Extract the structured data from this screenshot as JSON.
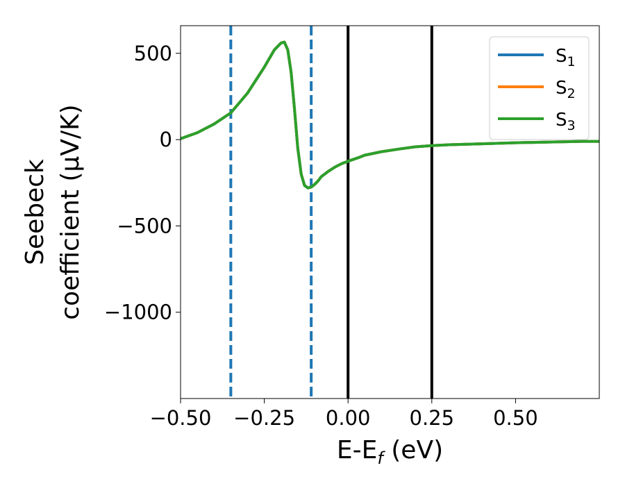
{
  "chart_data": {
    "type": "line",
    "xlabel_main": "E-E",
    "xlabel_sub": "f",
    "xlabel_unit": " (eV)",
    "ylabel_line1": "Seebeck",
    "ylabel_line2": "coefficient  (μV/K)",
    "xlim": [
      -0.5,
      0.75
    ],
    "ylim": [
      -1500,
      660
    ],
    "xticks": [
      -0.5,
      -0.25,
      0.0,
      0.25,
      0.5
    ],
    "xtick_labels": [
      "−0.50",
      "−0.25",
      "0.00",
      "0.25",
      "0.50"
    ],
    "yticks": [
      500,
      0,
      -500,
      -1000
    ],
    "ytick_labels": [
      "500",
      "0",
      "−500",
      "−1000"
    ],
    "grid": false,
    "legend_position": "top-right",
    "series": [
      {
        "name": "S",
        "subscript": "1",
        "color": "#1f77b4",
        "x": [
          -0.5,
          -0.45,
          -0.4,
          -0.35,
          -0.3,
          -0.25,
          -0.22,
          -0.2,
          -0.19,
          -0.18,
          -0.17,
          -0.16,
          -0.15,
          -0.14,
          -0.13,
          -0.12,
          -0.11,
          -0.1,
          -0.09,
          -0.08,
          -0.06,
          -0.04,
          -0.02,
          0.0,
          0.03,
          0.05,
          0.1,
          0.15,
          0.2,
          0.25,
          0.3,
          0.4,
          0.5,
          0.6,
          0.7,
          0.75
        ],
        "y": [
          5,
          40,
          90,
          155,
          270,
          420,
          520,
          560,
          565,
          520,
          390,
          180,
          -50,
          -200,
          -265,
          -280,
          -275,
          -260,
          -240,
          -215,
          -185,
          -160,
          -140,
          -125,
          -105,
          -90,
          -70,
          -55,
          -42,
          -35,
          -30,
          -24,
          -18,
          -14,
          -10,
          -10
        ]
      },
      {
        "name": "S",
        "subscript": "2",
        "color": "#ff7f0e",
        "x": [
          -0.5,
          -0.45,
          -0.4,
          -0.35,
          -0.3,
          -0.25,
          -0.22,
          -0.2,
          -0.19,
          -0.18,
          -0.17,
          -0.16,
          -0.15,
          -0.14,
          -0.13,
          -0.12,
          -0.11,
          -0.1,
          -0.09,
          -0.08,
          -0.06,
          -0.04,
          -0.02,
          0.0,
          0.03,
          0.05,
          0.1,
          0.15,
          0.2,
          0.25,
          0.3,
          0.4,
          0.5,
          0.6,
          0.7,
          0.75
        ],
        "y": [
          5,
          40,
          90,
          155,
          270,
          420,
          520,
          560,
          565,
          520,
          390,
          180,
          -50,
          -200,
          -265,
          -280,
          -275,
          -260,
          -240,
          -215,
          -185,
          -160,
          -140,
          -125,
          -105,
          -90,
          -70,
          -55,
          -42,
          -35,
          -30,
          -24,
          -18,
          -14,
          -10,
          -10
        ]
      },
      {
        "name": "S",
        "subscript": "3",
        "color": "#2ca02c",
        "x": [
          -0.5,
          -0.45,
          -0.4,
          -0.35,
          -0.3,
          -0.25,
          -0.22,
          -0.2,
          -0.19,
          -0.18,
          -0.17,
          -0.16,
          -0.15,
          -0.14,
          -0.13,
          -0.12,
          -0.11,
          -0.1,
          -0.09,
          -0.08,
          -0.06,
          -0.04,
          -0.02,
          0.0,
          0.03,
          0.05,
          0.1,
          0.15,
          0.2,
          0.25,
          0.3,
          0.4,
          0.5,
          0.6,
          0.7,
          0.75
        ],
        "y": [
          5,
          40,
          90,
          155,
          270,
          420,
          520,
          560,
          565,
          520,
          390,
          180,
          -50,
          -200,
          -265,
          -280,
          -275,
          -260,
          -240,
          -215,
          -185,
          -160,
          -140,
          -125,
          -105,
          -90,
          -70,
          -55,
          -42,
          -35,
          -30,
          -24,
          -18,
          -14,
          -10,
          -10
        ]
      }
    ],
    "vlines": [
      {
        "x": -0.35,
        "style": "dashed",
        "color": "#1f77b4"
      },
      {
        "x": -0.11,
        "style": "dashed",
        "color": "#1f77b4"
      },
      {
        "x": 0.0,
        "style": "solid",
        "color": "#000000"
      },
      {
        "x": 0.25,
        "style": "solid",
        "color": "#000000"
      }
    ]
  }
}
